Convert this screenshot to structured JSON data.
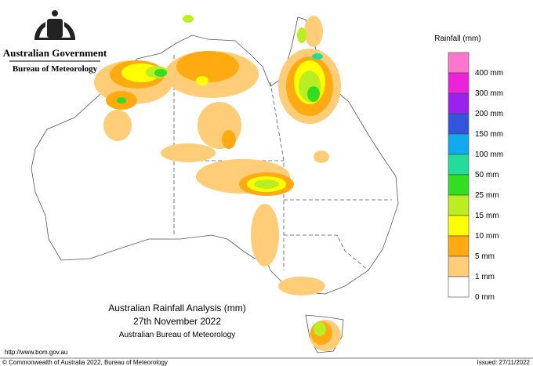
{
  "header": {
    "government": "Australian Government",
    "agency": "Bureau of Meteorology"
  },
  "map": {
    "title": "Australian Rainfall Analysis (mm)",
    "date": "27th November 2022",
    "source": "Australian Bureau of Meteorology"
  },
  "legend": {
    "title": "Rainfall (mm)",
    "items": [
      {
        "label": "400 mm",
        "color": "#ff77cc"
      },
      {
        "label": "300 mm",
        "color": "#ee22dd"
      },
      {
        "label": "200 mm",
        "color": "#9922ee"
      },
      {
        "label": "150 mm",
        "color": "#3355dd"
      },
      {
        "label": "100 mm",
        "color": "#11aaee"
      },
      {
        "label": "50 mm",
        "color": "#22dd99"
      },
      {
        "label": "25 mm",
        "color": "#33dd22"
      },
      {
        "label": "15 mm",
        "color": "#bbee22"
      },
      {
        "label": "10 mm",
        "color": "#ffff00"
      },
      {
        "label": "5 mm",
        "color": "#ffaa11"
      },
      {
        "label": "1 mm",
        "color": "#ffcc77"
      },
      {
        "label": "0 mm",
        "color": "#ffffff"
      }
    ]
  },
  "footer": {
    "url": "http://www.bom.gov.au",
    "copyright": "© Commonwealth of Australia 2022, Bureau of Meteorology",
    "issued": "Issued: 27/11/2022"
  }
}
